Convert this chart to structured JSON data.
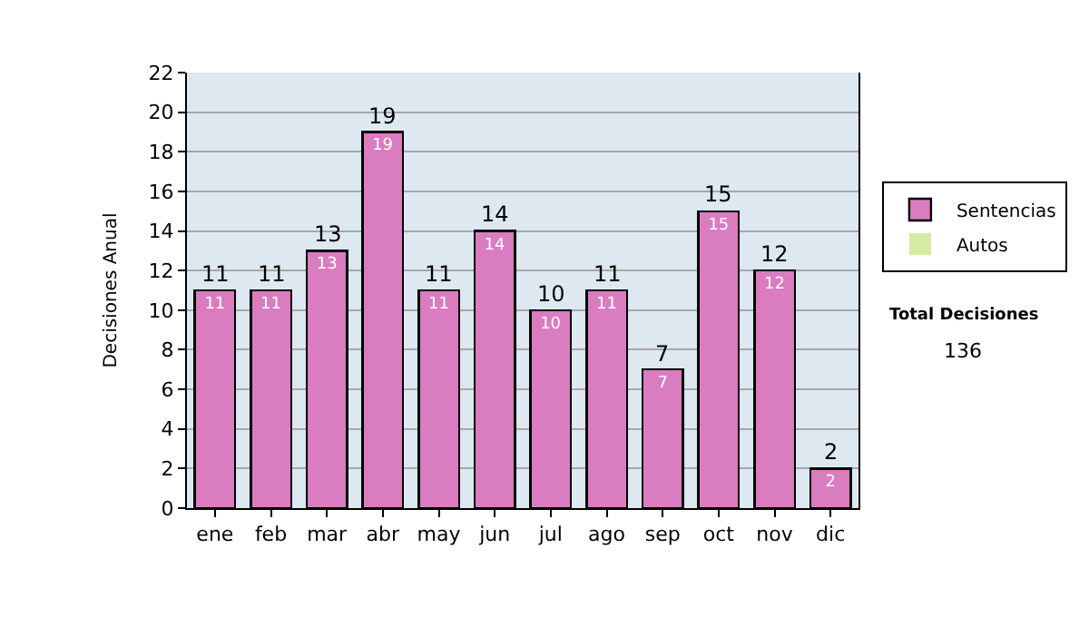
{
  "chart_data": {
    "type": "bar",
    "ylabel": "Decisiones Anual",
    "categories": [
      "ene",
      "feb",
      "mar",
      "abr",
      "may",
      "jun",
      "jul",
      "ago",
      "sep",
      "oct",
      "nov",
      "dic"
    ],
    "stacked": true,
    "series": [
      {
        "name": "Sentencias",
        "color": "#d97cc0",
        "values": [
          11,
          11,
          13,
          19,
          11,
          14,
          10,
          11,
          7,
          15,
          12,
          2
        ],
        "value_labels": [
          "11",
          "11",
          "13",
          "19",
          "11",
          "14",
          "10",
          "11",
          "7",
          "15",
          "12",
          "2"
        ]
      },
      {
        "name": "Autos",
        "color": "#d4eca0",
        "values": [
          0,
          0,
          0,
          0,
          0,
          0,
          0,
          0,
          0,
          0,
          0,
          0
        ]
      }
    ],
    "totals": [
      "11",
      "11",
      "13",
      "19",
      "11",
      "14",
      "10",
      "11",
      "7",
      "15",
      "12",
      "2"
    ],
    "ylim": [
      0,
      22
    ],
    "yticks": [
      0,
      2,
      4,
      6,
      8,
      10,
      12,
      14,
      16,
      18,
      20,
      22
    ],
    "grid": "y",
    "legend": "right",
    "annotations": [
      "Total Decisiones",
      "136"
    ]
  }
}
